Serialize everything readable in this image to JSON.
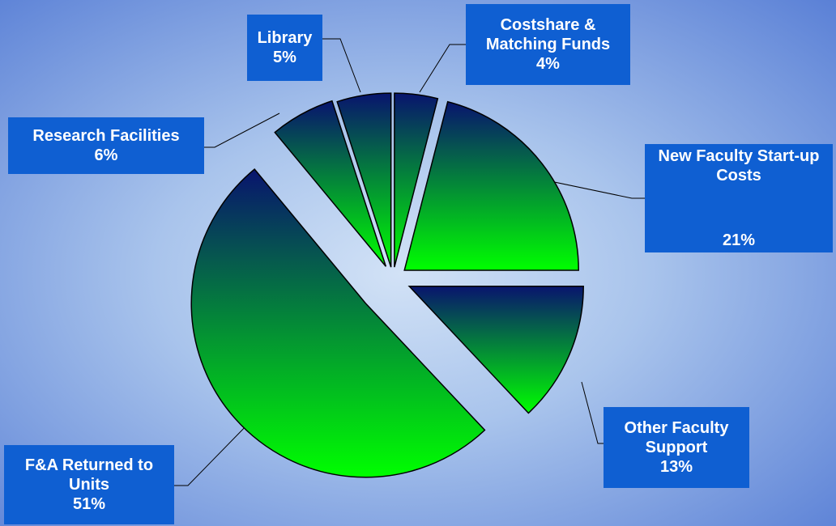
{
  "chart_data": {
    "type": "pie",
    "categories": [
      "Costshare & Matching Funds",
      "New Faculty Start-up Costs",
      "Other Faculty Support",
      "F&A Returned to Units",
      "Research Facilities",
      "Library"
    ],
    "values": [
      4,
      21,
      13,
      51,
      6,
      5
    ],
    "value_labels": [
      "4%",
      "21%",
      "13%",
      "51%",
      "6%",
      "5%"
    ],
    "gradient": [
      "#08146e",
      "#00ff00"
    ]
  }
}
